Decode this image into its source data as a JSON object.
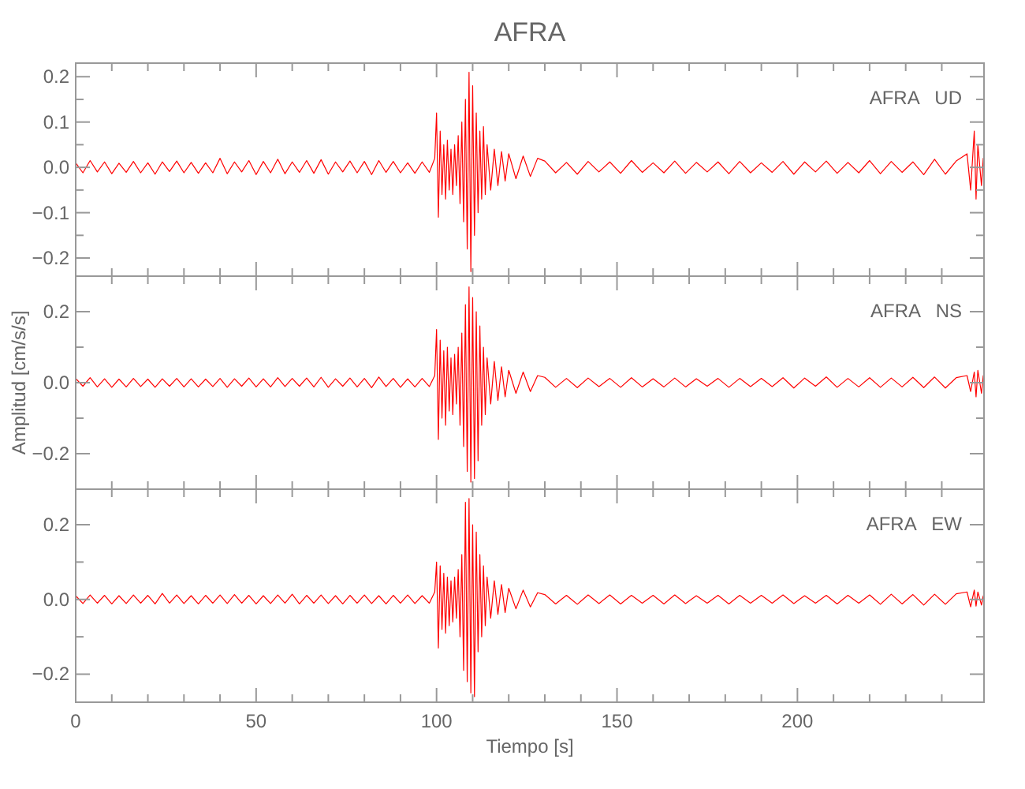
{
  "chart_data": [
    {
      "type": "line",
      "title": "AFRA",
      "annotations": [
        "AFRA   UD"
      ],
      "tick_labels": "y",
      "xlim": [
        0,
        251.7
      ],
      "xticks": [
        0,
        {
          "value": 10,
          "label": null
        },
        {
          "value": 20,
          "label": null
        },
        {
          "value": 30,
          "label": null
        },
        {
          "value": 40,
          "label": null
        },
        50,
        {
          "value": 60,
          "label": null
        },
        {
          "value": 70,
          "label": null
        },
        {
          "value": 80,
          "label": null
        },
        {
          "value": 90,
          "label": null
        },
        100,
        {
          "value": 110,
          "label": null
        },
        {
          "value": 120,
          "label": null
        },
        {
          "value": 130,
          "label": null
        },
        {
          "value": 140,
          "label": null
        },
        150,
        {
          "value": 160,
          "label": null
        },
        {
          "value": 170,
          "label": null
        },
        {
          "value": 180,
          "label": null
        },
        {
          "value": 190,
          "label": null
        },
        200,
        {
          "value": 210,
          "label": null
        },
        {
          "value": 220,
          "label": null
        },
        {
          "value": 230,
          "label": null
        },
        {
          "value": 240,
          "label": null
        }
      ],
      "ylim": [
        -0.24,
        0.23
      ],
      "yticks": [
        {
          "value": -0.2,
          "label": "−0.2"
        },
        {
          "value": -0.15,
          "label": null
        },
        {
          "value": -0.1,
          "label": "−0.1"
        },
        {
          "value": -0.05,
          "label": null
        },
        {
          "value": 0,
          "label": "0.0"
        },
        {
          "value": 0.05,
          "label": null
        },
        {
          "value": 0.1,
          "label": "0.1"
        },
        {
          "value": 0.15,
          "label": null
        },
        {
          "value": 0.2,
          "label": "0.2"
        }
      ],
      "x": [
        0,
        2,
        4,
        6,
        8,
        10,
        12,
        14,
        16,
        18,
        20,
        22,
        24,
        26,
        28,
        30,
        32,
        34,
        36,
        38,
        40,
        42,
        44,
        46,
        48,
        50,
        52,
        54,
        56,
        58,
        60,
        62,
        64,
        66,
        68,
        70,
        72,
        74,
        76,
        78,
        80,
        82,
        84,
        86,
        88,
        90,
        92,
        94,
        96,
        98,
        99.5,
        100,
        100.5,
        101,
        101.5,
        102,
        102.5,
        103,
        103.5,
        104,
        104.5,
        105,
        105.5,
        106,
        106.5,
        107,
        107.5,
        108,
        108.5,
        109,
        109.5,
        110,
        110.5,
        111,
        111.5,
        112,
        112.5,
        113,
        113.5,
        114,
        115,
        116,
        117,
        118,
        119,
        120,
        122,
        124,
        126,
        128,
        130,
        133,
        136,
        139,
        142,
        145,
        148,
        151,
        154,
        157,
        160,
        163,
        166,
        169,
        172,
        175,
        178,
        181,
        184,
        187,
        190,
        193,
        196,
        199,
        202,
        205,
        208,
        211,
        214,
        217,
        220,
        223,
        226,
        229,
        232,
        235,
        238,
        241,
        244,
        247,
        248,
        249,
        249.5,
        250,
        251,
        251.5
      ],
      "series": [
        {
          "color": "#ff0000",
          "values": [
            0.01,
            -0.012,
            0.015,
            -0.01,
            0.012,
            -0.014,
            0.009,
            -0.011,
            0.013,
            -0.012,
            0.01,
            -0.015,
            0.012,
            -0.009,
            0.014,
            -0.012,
            0.011,
            -0.013,
            0.01,
            -0.012,
            0.02,
            -0.014,
            0.012,
            -0.01,
            0.015,
            -0.016,
            0.013,
            -0.012,
            0.018,
            -0.014,
            0.012,
            -0.011,
            0.015,
            -0.013,
            0.017,
            -0.015,
            0.012,
            -0.01,
            0.014,
            -0.012,
            0.013,
            -0.016,
            0.015,
            -0.011,
            0.013,
            -0.012,
            0.01,
            -0.013,
            0.012,
            -0.011,
            0.02,
            0.12,
            -0.11,
            0.08,
            -0.06,
            0.05,
            -0.07,
            0.06,
            -0.05,
            0.04,
            -0.06,
            0.05,
            -0.04,
            0.07,
            -0.08,
            0.1,
            -0.12,
            0.15,
            -0.18,
            0.21,
            -0.23,
            0.18,
            -0.15,
            0.12,
            -0.1,
            0.08,
            -0.07,
            0.09,
            -0.06,
            0.05,
            -0.05,
            0.04,
            -0.04,
            0.035,
            -0.03,
            0.03,
            -0.025,
            0.025,
            -0.02,
            0.02,
            0.014,
            -0.012,
            0.011,
            -0.015,
            0.013,
            -0.01,
            0.012,
            -0.013,
            0.015,
            -0.011,
            0.01,
            -0.012,
            0.014,
            -0.013,
            0.011,
            -0.01,
            0.012,
            -0.014,
            0.013,
            -0.012,
            0.01,
            -0.011,
            0.013,
            -0.015,
            0.012,
            -0.01,
            0.014,
            -0.013,
            0.011,
            -0.012,
            0.015,
            -0.014,
            0.013,
            -0.011,
            0.012,
            -0.016,
            0.018,
            -0.015,
            0.014,
            0.03,
            -0.05,
            0.08,
            -0.07,
            0.05,
            -0.04,
            0.02
          ]
        }
      ]
    },
    {
      "type": "line",
      "ylabel": "Amplitud [cm/s/s]",
      "annotations": [
        "AFRA   NS"
      ],
      "tick_labels": "y",
      "xlim": [
        0,
        251.7
      ],
      "xticks": [
        0,
        {
          "value": 10,
          "label": null
        },
        {
          "value": 20,
          "label": null
        },
        {
          "value": 30,
          "label": null
        },
        {
          "value": 40,
          "label": null
        },
        50,
        {
          "value": 60,
          "label": null
        },
        {
          "value": 70,
          "label": null
        },
        {
          "value": 80,
          "label": null
        },
        {
          "value": 90,
          "label": null
        },
        100,
        {
          "value": 110,
          "label": null
        },
        {
          "value": 120,
          "label": null
        },
        {
          "value": 130,
          "label": null
        },
        {
          "value": 140,
          "label": null
        },
        150,
        {
          "value": 160,
          "label": null
        },
        {
          "value": 170,
          "label": null
        },
        {
          "value": 180,
          "label": null
        },
        {
          "value": 190,
          "label": null
        },
        200,
        {
          "value": 210,
          "label": null
        },
        {
          "value": 220,
          "label": null
        },
        {
          "value": 230,
          "label": null
        },
        {
          "value": 240,
          "label": null
        }
      ],
      "ylim": [
        -0.3,
        0.3
      ],
      "yticks": [
        {
          "value": -0.2,
          "label": "−0.2"
        },
        {
          "value": -0.1,
          "label": null
        },
        {
          "value": 0,
          "label": "0.0"
        },
        {
          "value": 0.1,
          "label": null
        },
        {
          "value": 0.2,
          "label": "0.2"
        }
      ],
      "x": [
        0,
        2,
        4,
        6,
        8,
        10,
        12,
        14,
        16,
        18,
        20,
        22,
        24,
        26,
        28,
        30,
        32,
        34,
        36,
        38,
        40,
        42,
        44,
        46,
        48,
        50,
        52,
        54,
        56,
        58,
        60,
        62,
        64,
        66,
        68,
        70,
        72,
        74,
        76,
        78,
        80,
        82,
        84,
        86,
        88,
        90,
        92,
        94,
        96,
        98,
        99.5,
        100,
        100.5,
        101,
        101.5,
        102,
        102.5,
        103,
        103.5,
        104,
        104.5,
        105,
        105.5,
        106,
        106.5,
        107,
        107.5,
        108,
        108.5,
        109,
        109.5,
        110,
        110.5,
        111,
        111.5,
        112,
        112.5,
        113,
        113.5,
        114,
        115,
        116,
        117,
        118,
        119,
        120,
        122,
        124,
        126,
        128,
        130,
        133,
        136,
        139,
        142,
        145,
        148,
        151,
        154,
        157,
        160,
        163,
        166,
        169,
        172,
        175,
        178,
        181,
        184,
        187,
        190,
        193,
        196,
        199,
        202,
        205,
        208,
        211,
        214,
        217,
        220,
        223,
        226,
        229,
        232,
        235,
        238,
        241,
        244,
        247,
        248,
        249,
        249.5,
        250,
        251,
        251.5
      ],
      "series": [
        {
          "color": "#ff0000",
          "values": [
            0.012,
            -0.01,
            0.014,
            -0.012,
            0.011,
            -0.013,
            0.01,
            -0.012,
            0.012,
            -0.011,
            0.01,
            -0.013,
            0.011,
            -0.01,
            0.012,
            -0.012,
            0.011,
            -0.012,
            0.01,
            -0.011,
            0.012,
            -0.013,
            0.011,
            -0.01,
            0.013,
            -0.012,
            0.011,
            -0.012,
            0.014,
            -0.011,
            0.012,
            -0.01,
            0.013,
            -0.012,
            0.015,
            -0.013,
            0.011,
            -0.01,
            0.013,
            -0.012,
            0.012,
            -0.014,
            0.016,
            -0.011,
            0.012,
            -0.013,
            0.011,
            -0.012,
            0.012,
            -0.011,
            0.02,
            0.15,
            -0.16,
            0.12,
            -0.1,
            0.09,
            -0.12,
            0.1,
            -0.08,
            0.07,
            -0.09,
            0.08,
            -0.06,
            0.1,
            -0.12,
            0.14,
            -0.18,
            0.22,
            -0.25,
            0.27,
            -0.28,
            0.24,
            -0.27,
            0.2,
            -0.22,
            0.16,
            -0.12,
            0.1,
            -0.09,
            0.07,
            -0.06,
            0.06,
            -0.05,
            0.045,
            -0.04,
            0.035,
            -0.03,
            0.03,
            -0.025,
            0.02,
            0.015,
            -0.013,
            0.012,
            -0.014,
            0.013,
            -0.011,
            0.012,
            -0.013,
            0.014,
            -0.012,
            0.011,
            -0.012,
            0.013,
            -0.012,
            0.011,
            -0.01,
            0.012,
            -0.013,
            0.012,
            -0.011,
            0.012,
            -0.011,
            0.014,
            -0.015,
            0.013,
            -0.01,
            0.016,
            -0.013,
            0.012,
            -0.012,
            0.014,
            -0.013,
            0.013,
            -0.012,
            0.015,
            -0.014,
            0.016,
            -0.015,
            0.014,
            0.02,
            -0.025,
            0.03,
            -0.04,
            0.035,
            -0.03,
            0.02
          ]
        }
      ]
    },
    {
      "type": "line",
      "xlabel": "Tiempo [s]",
      "annotations": [
        "AFRA   EW"
      ],
      "xlim": [
        0,
        251.7
      ],
      "xticks": [
        0,
        {
          "value": 10,
          "label": null
        },
        {
          "value": 20,
          "label": null
        },
        {
          "value": 30,
          "label": null
        },
        {
          "value": 40,
          "label": null
        },
        50,
        {
          "value": 60,
          "label": null
        },
        {
          "value": 70,
          "label": null
        },
        {
          "value": 80,
          "label": null
        },
        {
          "value": 90,
          "label": null
        },
        100,
        {
          "value": 110,
          "label": null
        },
        {
          "value": 120,
          "label": null
        },
        {
          "value": 130,
          "label": null
        },
        {
          "value": 140,
          "label": null
        },
        150,
        {
          "value": 160,
          "label": null
        },
        {
          "value": 170,
          "label": null
        },
        {
          "value": 180,
          "label": null
        },
        {
          "value": 190,
          "label": null
        },
        200,
        {
          "value": 210,
          "label": null
        },
        {
          "value": 220,
          "label": null
        },
        {
          "value": 230,
          "label": null
        },
        {
          "value": 240,
          "label": null
        }
      ],
      "ylim": [
        -0.275,
        0.295
      ],
      "yticks": [
        {
          "value": -0.2,
          "label": "−0.2"
        },
        {
          "value": -0.1,
          "label": null
        },
        {
          "value": 0,
          "label": "0.0"
        },
        {
          "value": 0.1,
          "label": null
        },
        {
          "value": 0.2,
          "label": "0.2"
        }
      ],
      "x": [
        0,
        2,
        4,
        6,
        8,
        10,
        12,
        14,
        16,
        18,
        20,
        22,
        24,
        26,
        28,
        30,
        32,
        34,
        36,
        38,
        40,
        42,
        44,
        46,
        48,
        50,
        52,
        54,
        56,
        58,
        60,
        62,
        64,
        66,
        68,
        70,
        72,
        74,
        76,
        78,
        80,
        82,
        84,
        86,
        88,
        90,
        92,
        94,
        96,
        98,
        99.5,
        100,
        100.5,
        101,
        101.5,
        102,
        102.5,
        103,
        103.5,
        104,
        104.5,
        105,
        105.5,
        106,
        106.5,
        107,
        107.5,
        108,
        108.5,
        109,
        109.5,
        110,
        110.5,
        111,
        111.5,
        112,
        112.5,
        113,
        113.5,
        114,
        115,
        116,
        117,
        118,
        119,
        120,
        122,
        124,
        126,
        128,
        130,
        133,
        136,
        139,
        142,
        145,
        148,
        151,
        154,
        157,
        160,
        163,
        166,
        169,
        172,
        175,
        178,
        181,
        184,
        187,
        190,
        193,
        196,
        199,
        202,
        205,
        208,
        211,
        214,
        217,
        220,
        223,
        226,
        229,
        232,
        235,
        238,
        241,
        244,
        247,
        248,
        249,
        249.5,
        250,
        251,
        251.5
      ],
      "series": [
        {
          "color": "#ff0000",
          "values": [
            0.01,
            -0.011,
            0.012,
            -0.01,
            0.011,
            -0.012,
            0.01,
            -0.011,
            0.012,
            -0.01,
            0.011,
            -0.012,
            0.016,
            -0.01,
            0.012,
            -0.011,
            0.01,
            -0.012,
            0.011,
            -0.01,
            0.012,
            -0.011,
            0.013,
            -0.01,
            0.011,
            -0.012,
            0.01,
            -0.011,
            0.012,
            -0.01,
            0.014,
            -0.012,
            0.011,
            -0.01,
            0.012,
            -0.011,
            0.01,
            -0.012,
            0.011,
            -0.01,
            0.012,
            -0.011,
            0.01,
            -0.012,
            0.011,
            -0.01,
            0.012,
            -0.011,
            0.01,
            -0.01,
            0.02,
            0.1,
            -0.13,
            0.09,
            -0.08,
            0.07,
            -0.09,
            0.06,
            -0.07,
            0.05,
            -0.06,
            0.06,
            -0.05,
            0.08,
            -0.1,
            0.12,
            -0.19,
            0.26,
            -0.22,
            0.27,
            -0.25,
            0.2,
            -0.26,
            0.18,
            -0.14,
            0.12,
            -0.1,
            0.09,
            -0.07,
            0.06,
            -0.05,
            0.05,
            -0.04,
            0.04,
            -0.035,
            0.03,
            -0.025,
            0.025,
            -0.02,
            0.018,
            0.013,
            -0.012,
            0.011,
            -0.013,
            0.012,
            -0.011,
            0.012,
            -0.012,
            0.011,
            -0.01,
            0.011,
            -0.012,
            0.012,
            -0.011,
            0.01,
            -0.01,
            0.011,
            -0.012,
            0.011,
            -0.01,
            0.011,
            -0.01,
            0.012,
            -0.011,
            0.01,
            -0.01,
            0.011,
            -0.012,
            0.011,
            -0.01,
            0.012,
            -0.013,
            0.014,
            -0.012,
            0.013,
            -0.015,
            0.014,
            -0.013,
            0.015,
            0.02,
            -0.02,
            0.025,
            -0.018,
            0.02,
            -0.015,
            0.01
          ]
        }
      ]
    }
  ]
}
